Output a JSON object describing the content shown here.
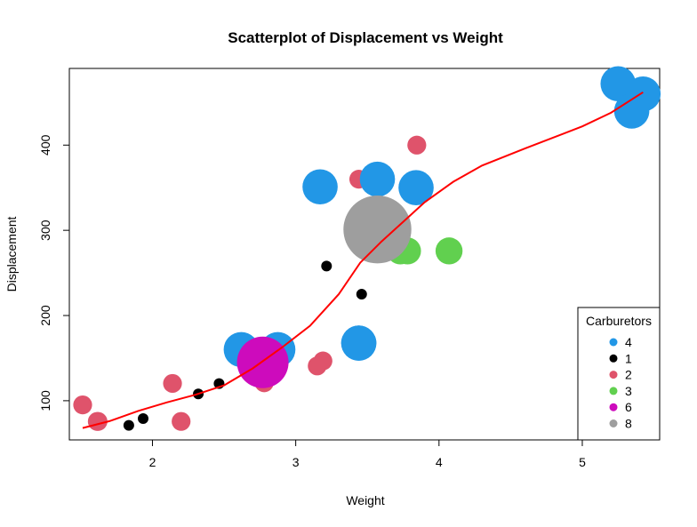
{
  "chart_data": {
    "type": "scatter",
    "title": "Scatterplot of Displacement vs Weight",
    "xlabel": "Weight",
    "ylabel": "Displacement",
    "xlim": [
      1.42,
      5.54
    ],
    "ylim": [
      54,
      490
    ],
    "xticks": [
      2,
      3,
      4,
      5
    ],
    "yticks": [
      100,
      200,
      300,
      400
    ],
    "grid": false,
    "legend": {
      "title": "Carburetors",
      "position": "bottom-right",
      "entries": [
        {
          "label": "4",
          "color": "#2297E6"
        },
        {
          "label": "1",
          "color": "#000000"
        },
        {
          "label": "2",
          "color": "#DF536B"
        },
        {
          "label": "3",
          "color": "#61D04F"
        },
        {
          "label": "6",
          "color": "#CD0BBC"
        },
        {
          "label": "8",
          "color": "#9E9E9E"
        }
      ]
    },
    "series": [
      {
        "carb": "1",
        "color": "#000000",
        "size": 1,
        "points": [
          [
            2.32,
            108
          ],
          [
            3.215,
            258
          ],
          [
            3.46,
            225
          ],
          [
            2.2,
            78.7
          ],
          [
            1.835,
            71.1
          ],
          [
            2.465,
            120.1
          ],
          [
            1.935,
            79
          ]
        ]
      },
      {
        "carb": "2",
        "color": "#DF536B",
        "size": 2,
        "points": [
          [
            3.44,
            360
          ],
          [
            3.19,
            146.7
          ],
          [
            3.15,
            140.8
          ],
          [
            3.52,
            318
          ],
          [
            3.435,
            304
          ],
          [
            3.845,
            400
          ],
          [
            2.2,
            75.7
          ],
          [
            1.615,
            75.7
          ],
          [
            2.14,
            120.3
          ],
          [
            1.513,
            95.1
          ],
          [
            2.78,
            121
          ],
          [
            1.62,
            75.7
          ]
        ]
      },
      {
        "carb": "3",
        "color": "#61D04F",
        "size": 3,
        "points": [
          [
            4.07,
            275.8
          ],
          [
            3.73,
            275.8
          ],
          [
            3.78,
            275.8
          ]
        ]
      },
      {
        "carb": "4",
        "color": "#2297E6",
        "size": 4,
        "points": [
          [
            2.62,
            160
          ],
          [
            2.875,
            160
          ],
          [
            3.57,
            360
          ],
          [
            3.44,
            167.6
          ],
          [
            3.44,
            167.6
          ],
          [
            5.25,
            472
          ],
          [
            5.424,
            460
          ],
          [
            5.345,
            440
          ],
          [
            3.84,
            350
          ],
          [
            3.17,
            351
          ]
        ]
      },
      {
        "carb": "6",
        "color": "#CD0BBC",
        "size": 6,
        "points": [
          [
            2.77,
            145
          ]
        ]
      },
      {
        "carb": "8",
        "color": "#9E9E9E",
        "size": 8,
        "points": [
          [
            3.57,
            301
          ]
        ]
      }
    ],
    "trend_line": {
      "color": "#FF0000",
      "points": [
        [
          1.513,
          68
        ],
        [
          1.7,
          76
        ],
        [
          1.9,
          88
        ],
        [
          2.1,
          98
        ],
        [
          2.3,
          107
        ],
        [
          2.5,
          118
        ],
        [
          2.7,
          138
        ],
        [
          2.9,
          162
        ],
        [
          3.1,
          188
        ],
        [
          3.3,
          225
        ],
        [
          3.45,
          262
        ],
        [
          3.6,
          287
        ],
        [
          3.75,
          310
        ],
        [
          3.9,
          333
        ],
        [
          4.1,
          357
        ],
        [
          4.3,
          376
        ],
        [
          4.6,
          396
        ],
        [
          5.0,
          422
        ],
        [
          5.2,
          438
        ],
        [
          5.424,
          462
        ]
      ]
    }
  }
}
